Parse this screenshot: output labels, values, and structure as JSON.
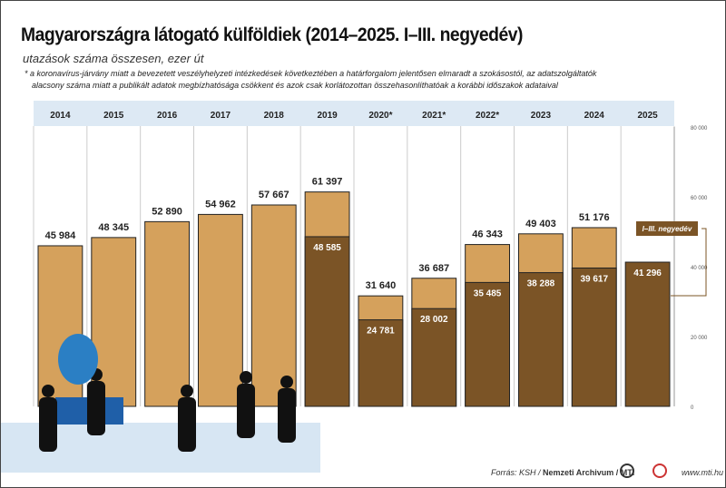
{
  "title": "Magyarországra látogató külföldiek (2014–2025. I–III. negyedév)",
  "subtitle": "utazások száma összesen, ezer út",
  "note_line1": "* a koronavírus-járvány miatt  a bevezetett veszélyhelyzeti intézkedések következtében a határforgalom jelentősen elmaradt a szokásostól, az adatszolgáltatók",
  "note_line2": "alacsony száma miatt a publikált adatok megbízhatósága csökkent és azok csak korlátozottan összehasonlíthatóak a korábbi időszakok adataival",
  "footer": {
    "source_prefix": "Forrás: KSH / ",
    "source_bold": "Nemzeti Archivum / MTI",
    "website": "www.mti.hu",
    "logo1": "MTVA",
    "logo2": "MTI"
  },
  "chart_data": {
    "type": "bar",
    "categories": [
      "2014",
      "2015",
      "2016",
      "2017",
      "2018",
      "2019",
      "2020*",
      "2021*",
      "2022*",
      "2023",
      "2024",
      "2025"
    ],
    "series": [
      {
        "name": "összesen",
        "values": [
          45984,
          48345,
          52890,
          54962,
          57667,
          61397,
          31640,
          36687,
          46343,
          49403,
          51176,
          null
        ],
        "color": "#d5a15c"
      },
      {
        "name": "I–III. negyedév",
        "values": [
          null,
          null,
          null,
          null,
          null,
          48585,
          24781,
          28002,
          35485,
          38288,
          39617,
          41296
        ],
        "color": "#7b5426"
      }
    ],
    "labels_total": [
      "45 984",
      "48 345",
      "52 890",
      "54 962",
      "57 667",
      "61 397",
      "31 640",
      "36 687",
      "46 343",
      "49 403",
      "51 176",
      ""
    ],
    "labels_q": [
      "",
      "",
      "",
      "",
      "",
      "48 585",
      "24 781",
      "28 002",
      "35 485",
      "38 288",
      "39 617",
      "41 296"
    ],
    "ylim": [
      0,
      80000
    ],
    "yticks": [
      0,
      20000,
      40000,
      60000,
      80000
    ],
    "ytick_labels": [
      "0",
      "20 000",
      "40 000",
      "60 000",
      "80 000"
    ],
    "y_axis_side": "right",
    "header_color": "#dde9f4",
    "legend": "I–III. negyedév"
  }
}
